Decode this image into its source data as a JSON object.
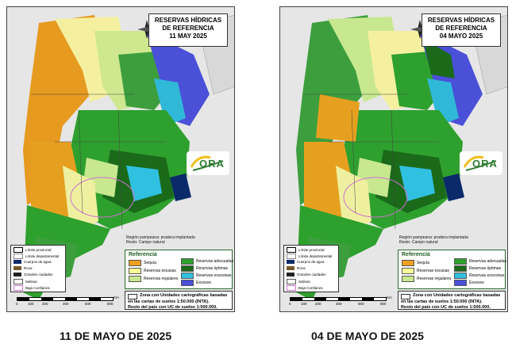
{
  "maps": [
    {
      "title_line1": "RESERVAS HÍDRICAS",
      "title_line2": "DE REFERENCIA",
      "title_line3": "11 MAY 2025",
      "caption": "11 DE MAYO DE 2025"
    },
    {
      "title_line1": "RESERVAS HÍDRICAS",
      "title_line2": "DE REFERENCIA",
      "title_line3": "04 MAYO 2025",
      "caption": "04 DE MAYO DE 2025"
    }
  ],
  "note_line1": "Región pampeana: pradera implantada",
  "note_line2": "Resto: Campo natural",
  "referencia": {
    "title": "Referencia",
    "items": [
      {
        "label": "Sequía",
        "color": "#f0a020"
      },
      {
        "label": "Reservas escasas",
        "color": "#ffff99"
      },
      {
        "label": "Reservas regulares",
        "color": "#c8e890"
      },
      {
        "label": "Reservas adecuadas",
        "color": "#2ea02e"
      },
      {
        "label": "Reservas óptimas",
        "color": "#1a6a1a"
      },
      {
        "label": "Reservas excesivas",
        "color": "#30c0e0"
      },
      {
        "label": "Excesos",
        "color": "#4a50d8"
      }
    ]
  },
  "zona": {
    "line1": "Zona con Unidades cartográficas basadas",
    "line2": "en las cartas de suelos 1:50.000 (INTA).",
    "line3": "Resto del país con UC de suelos 1:500.000."
  },
  "legend2": {
    "items": [
      {
        "label": "Límite provincial",
        "color": "#000000"
      },
      {
        "label": "Límite departamental",
        "color": "#888888"
      },
      {
        "label": "Cuerpos de agua",
        "color": "#0a2a6a"
      },
      {
        "label": "Roca",
        "color": "#7a5a2a"
      },
      {
        "label": "Grandes ciudades",
        "color": "#222222"
      },
      {
        "label": "Salinas",
        "color": "#ffffff"
      },
      {
        "label": "Baja Confianza",
        "color": "#d070d0"
      }
    ]
  },
  "scale": {
    "labels": [
      "0",
      "100",
      "200",
      "400",
      "600",
      "800"
    ],
    "unit": "Km"
  },
  "logo_text": "ORA"
}
